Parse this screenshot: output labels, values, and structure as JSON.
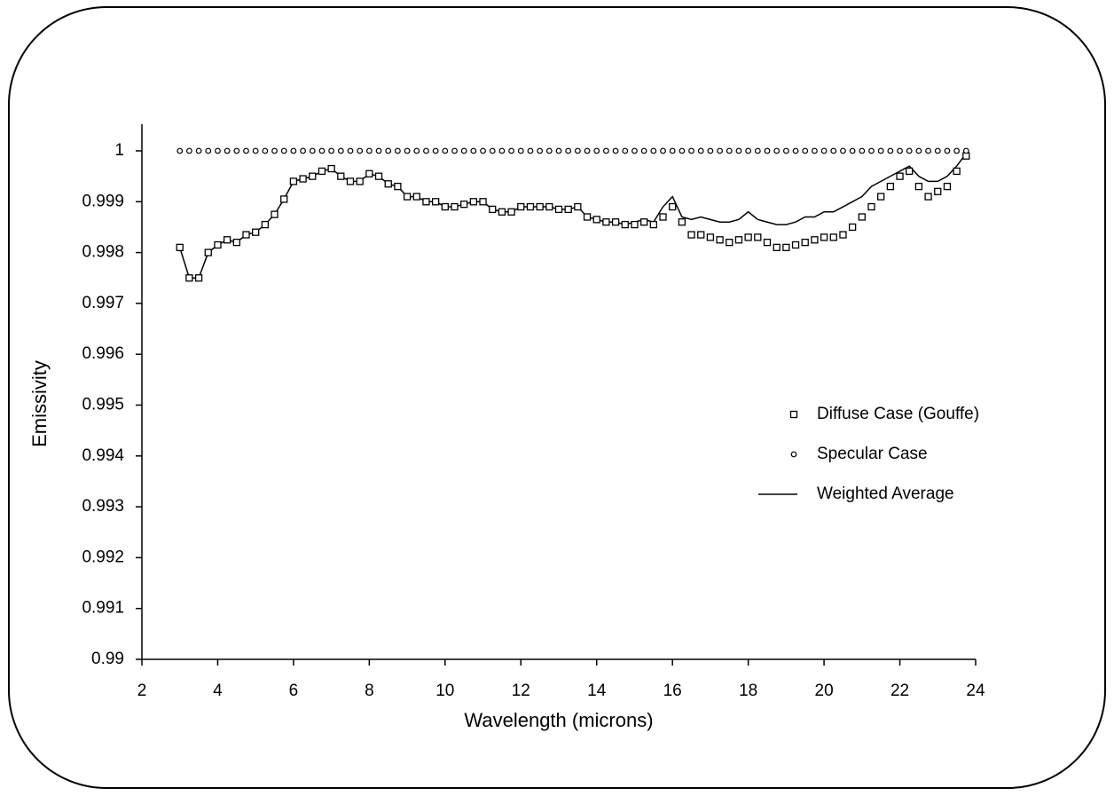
{
  "chart_data": {
    "type": "scatter",
    "x_label": "Wavelength (microns)",
    "y_label": "Emissivity",
    "xlim": [
      2,
      24
    ],
    "xticks": [
      2,
      4,
      6,
      8,
      10,
      12,
      14,
      16,
      18,
      20,
      22,
      24
    ],
    "ylim": [
      0.99,
      1
    ],
    "yticks": [
      0.99,
      0.991,
      0.992,
      0.993,
      0.994,
      0.995,
      0.996,
      0.997,
      0.998,
      0.999,
      1
    ],
    "grid": false,
    "legend": "right",
    "x": [
      3,
      3.25,
      3.5,
      3.75,
      4,
      4.25,
      4.5,
      4.75,
      5,
      5.25,
      5.5,
      5.75,
      6,
      6.25,
      6.5,
      6.75,
      7,
      7.25,
      7.5,
      7.75,
      8,
      8.25,
      8.5,
      8.75,
      9,
      9.25,
      9.5,
      9.75,
      10,
      10.25,
      10.5,
      10.75,
      11,
      11.25,
      11.5,
      11.75,
      12,
      12.25,
      12.5,
      12.75,
      13,
      13.25,
      13.5,
      13.75,
      14,
      14.25,
      14.5,
      14.75,
      15,
      15.25,
      15.5,
      15.75,
      16,
      16.25,
      16.5,
      16.75,
      17,
      17.25,
      17.5,
      17.75,
      18,
      18.25,
      18.5,
      18.75,
      19,
      19.25,
      19.5,
      19.75,
      20,
      20.25,
      20.5,
      20.75,
      21,
      21.25,
      21.5,
      21.75,
      22,
      22.25,
      22.5,
      22.75,
      23,
      23.25,
      23.5,
      23.75
    ],
    "series": [
      {
        "name": "Diffuse Case (Gouffe)",
        "color": "#000000",
        "marker": "square",
        "values": [
          0.9981,
          0.9975,
          0.9975,
          0.998,
          0.99815,
          0.99825,
          0.9982,
          0.99835,
          0.9984,
          0.99855,
          0.99875,
          0.99905,
          0.9994,
          0.99945,
          0.9995,
          0.9996,
          0.99965,
          0.9995,
          0.9994,
          0.9994,
          0.99955,
          0.9995,
          0.99935,
          0.9993,
          0.9991,
          0.9991,
          0.999,
          0.999,
          0.9989,
          0.9989,
          0.99895,
          0.999,
          0.999,
          0.99885,
          0.9988,
          0.9988,
          0.9989,
          0.9989,
          0.9989,
          0.9989,
          0.99885,
          0.99885,
          0.9989,
          0.9987,
          0.99865,
          0.9986,
          0.9986,
          0.99855,
          0.99855,
          0.9986,
          0.99855,
          0.9987,
          0.9989,
          0.9986,
          0.99835,
          0.99835,
          0.9983,
          0.99825,
          0.9982,
          0.99825,
          0.9983,
          0.9983,
          0.9982,
          0.9981,
          0.9981,
          0.99815,
          0.9982,
          0.99825,
          0.9983,
          0.9983,
          0.99835,
          0.9985,
          0.9987,
          0.9989,
          0.9991,
          0.9993,
          0.9995,
          0.9996,
          0.9993,
          0.9991,
          0.9992,
          0.9993,
          0.9996,
          0.9999
        ]
      },
      {
        "name": "Specular Case",
        "color": "#000000",
        "marker": "circle",
        "values": [
          1,
          1,
          1,
          1,
          1,
          1,
          1,
          1,
          1,
          1,
          1,
          1,
          1,
          1,
          1,
          1,
          1,
          1,
          1,
          1,
          1,
          1,
          1,
          1,
          1,
          1,
          1,
          1,
          1,
          1,
          1,
          1,
          1,
          1,
          1,
          1,
          1,
          1,
          1,
          1,
          1,
          1,
          1,
          1,
          1,
          1,
          1,
          1,
          1,
          1,
          1,
          1,
          1,
          1,
          1,
          1,
          1,
          1,
          1,
          1,
          1,
          1,
          1,
          1,
          1,
          1,
          1,
          1,
          1,
          1,
          1,
          1,
          1,
          1,
          1,
          1,
          1,
          1,
          1,
          1,
          1,
          1,
          1,
          1
        ]
      },
      {
        "name": "Weighted Average",
        "color": "#000000",
        "marker": "line",
        "values": [
          0.9981,
          0.9975,
          0.9975,
          0.998,
          0.99815,
          0.99825,
          0.9982,
          0.99835,
          0.9984,
          0.99855,
          0.99875,
          0.99905,
          0.9994,
          0.99945,
          0.9995,
          0.9996,
          0.99965,
          0.9995,
          0.9994,
          0.9994,
          0.99955,
          0.9995,
          0.99935,
          0.9993,
          0.9991,
          0.9991,
          0.999,
          0.999,
          0.9989,
          0.9989,
          0.99895,
          0.999,
          0.999,
          0.99885,
          0.9988,
          0.9988,
          0.9989,
          0.9989,
          0.9989,
          0.9989,
          0.99885,
          0.99885,
          0.9989,
          0.9987,
          0.99865,
          0.9986,
          0.9986,
          0.99855,
          0.9986,
          0.99865,
          0.9986,
          0.9989,
          0.9991,
          0.9987,
          0.99865,
          0.9987,
          0.99865,
          0.9986,
          0.9986,
          0.99865,
          0.9988,
          0.99865,
          0.9986,
          0.99855,
          0.99855,
          0.9986,
          0.9987,
          0.9987,
          0.9988,
          0.9988,
          0.9989,
          0.999,
          0.9991,
          0.9993,
          0.9994,
          0.9995,
          0.9996,
          0.9997,
          0.9995,
          0.9994,
          0.9994,
          0.9995,
          0.9997,
          0.99995
        ]
      }
    ]
  }
}
